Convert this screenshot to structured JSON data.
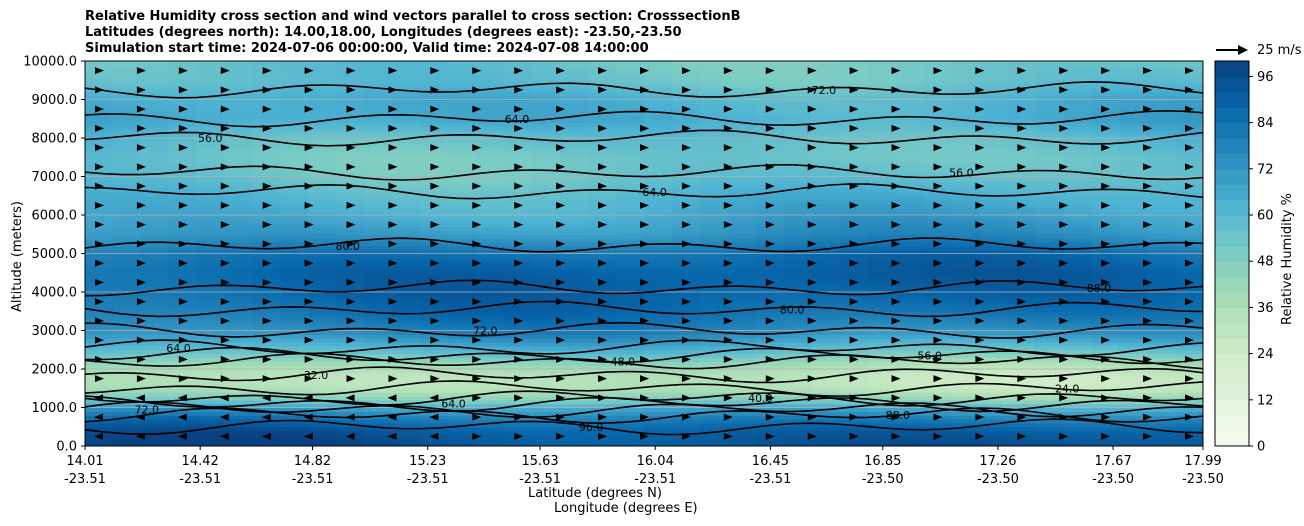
{
  "chart_data": {
    "type": "heatmap",
    "title_lines": [
      "Relative Humidity cross section and wind vectors parallel to cross section: CrosssectionB",
      "Latitudes (degrees north): 14.00,18.00, Longitudes (degrees east): -23.50,-23.50",
      "Simulation start time: 2024-07-06 00:00:00, Valid time: 2024-07-08 14:00:00"
    ],
    "xlabel": "Latitude (degrees N)",
    "xlabel2": "Longitude (degrees E)",
    "ylabel": "Altitude (meters)",
    "colorbar_label": "Relative Humidity %",
    "wind_reference": "25 m/s",
    "x_ticks": [
      {
        "lat": "14.01",
        "lon": "-23.51"
      },
      {
        "lat": "14.42",
        "lon": "-23.51"
      },
      {
        "lat": "14.82",
        "lon": "-23.51"
      },
      {
        "lat": "15.23",
        "lon": "-23.51"
      },
      {
        "lat": "15.63",
        "lon": "-23.51"
      },
      {
        "lat": "16.04",
        "lon": "-23.51"
      },
      {
        "lat": "16.45",
        "lon": "-23.51"
      },
      {
        "lat": "16.85",
        "lon": "-23.50"
      },
      {
        "lat": "17.26",
        "lon": "-23.50"
      },
      {
        "lat": "17.67",
        "lon": "-23.50"
      },
      {
        "lat": "17.99",
        "lon": "-23.50"
      }
    ],
    "x_range": [
      14.01,
      17.99
    ],
    "y_ticks": [
      "0.0",
      "1000.0",
      "2000.0",
      "3000.0",
      "4000.0",
      "5000.0",
      "6000.0",
      "7000.0",
      "8000.0",
      "9000.0",
      "10000.0"
    ],
    "y_range": [
      0,
      10000
    ],
    "grid": "horizontal",
    "colorbar_ticks": [
      0,
      12,
      24,
      36,
      48,
      60,
      72,
      84,
      96
    ],
    "colorbar_range": [
      0,
      100
    ],
    "colormap": [
      "#f7fcf0",
      "#e0f3db",
      "#ccebc5",
      "#a8ddb5",
      "#7bccc4",
      "#4eb3d3",
      "#2b8cbe",
      "#0868ac",
      "#084081"
    ],
    "rh_profile": [
      {
        "alt": 0,
        "rh": 96
      },
      {
        "alt": 400,
        "rh": 92
      },
      {
        "alt": 700,
        "rh": 82
      },
      {
        "alt": 1000,
        "rh": 66
      },
      {
        "alt": 1200,
        "rh": 48
      },
      {
        "alt": 1500,
        "rh": 32
      },
      {
        "alt": 1800,
        "rh": 30
      },
      {
        "alt": 2100,
        "rh": 38
      },
      {
        "alt": 2400,
        "rh": 54
      },
      {
        "alt": 2700,
        "rh": 66
      },
      {
        "alt": 3000,
        "rh": 76
      },
      {
        "alt": 3500,
        "rh": 84
      },
      {
        "alt": 4000,
        "rh": 88
      },
      {
        "alt": 4500,
        "rh": 89
      },
      {
        "alt": 5000,
        "rh": 84
      },
      {
        "alt": 5500,
        "rh": 72
      },
      {
        "alt": 6000,
        "rh": 66
      },
      {
        "alt": 6500,
        "rh": 62
      },
      {
        "alt": 7000,
        "rh": 56
      },
      {
        "alt": 7500,
        "rh": 54
      },
      {
        "alt": 8000,
        "rh": 58
      },
      {
        "alt": 8500,
        "rh": 66
      },
      {
        "alt": 9000,
        "rh": 64
      },
      {
        "alt": 9500,
        "rh": 56
      },
      {
        "alt": 10000,
        "rh": 54
      }
    ],
    "contours": [
      {
        "alt": 500,
        "label": "96.0"
      },
      {
        "alt": 800,
        "label": "88.0"
      },
      {
        "alt": 950,
        "label": "72.0"
      },
      {
        "alt": 1100,
        "label": "64.0"
      },
      {
        "alt": 1250,
        "label": "40.0"
      },
      {
        "alt": 1500,
        "label": "24.0"
      },
      {
        "alt": 1850,
        "label": "32.0"
      },
      {
        "alt": 2200,
        "label": "48.0"
      },
      {
        "alt": 2350,
        "label": "56.0"
      },
      {
        "alt": 2550,
        "label": "64.0"
      },
      {
        "alt": 3000,
        "label": "72.0"
      },
      {
        "alt": 3550,
        "label": "80.0"
      },
      {
        "alt": 4100,
        "label": "88.0"
      },
      {
        "alt": 5200,
        "label": "80.0"
      },
      {
        "alt": 6600,
        "label": "64.0"
      },
      {
        "alt": 7100,
        "label": "56.0"
      },
      {
        "alt": 8000,
        "label": "56.0"
      },
      {
        "alt": 8500,
        "label": "64.0"
      },
      {
        "alt": 9250,
        "label": "72.0"
      }
    ],
    "wind_vector_rows_altitude": [
      250,
      750,
      1250,
      1750,
      2250,
      2750,
      3250,
      3750,
      4250,
      4750,
      5250,
      5750,
      6250,
      6750,
      7250,
      7750,
      8250,
      8750,
      9250,
      9750
    ]
  }
}
